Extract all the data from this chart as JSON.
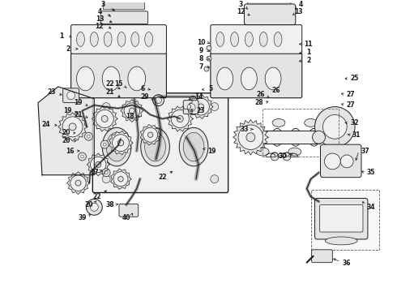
{
  "background_color": "#ffffff",
  "line_color": "#1a1a1a",
  "text_color": "#1a1a1a",
  "fig_width": 4.9,
  "fig_height": 3.6,
  "dpi": 100,
  "gray_fill": "#d8d8d8",
  "light_fill": "#f0f0f0",
  "mid_fill": "#e4e4e4"
}
